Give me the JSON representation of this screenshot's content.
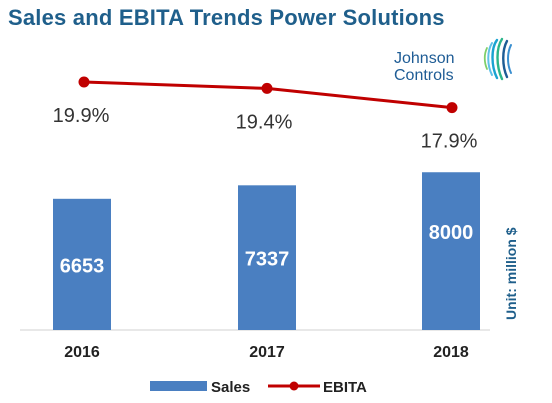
{
  "title": "Sales and EBITA Trends Power Solutions",
  "logo": {
    "line1": "Johnson",
    "line2": "Controls"
  },
  "unit_label": "Unit:  million $",
  "colors": {
    "bar": "#4a7fc1",
    "line": "#c00000",
    "title": "#1f5f8b"
  },
  "chart_data": {
    "type": "bar",
    "categories": [
      "2016",
      "2017",
      "2018"
    ],
    "series": [
      {
        "name": "Sales",
        "type": "bar",
        "values": [
          6653,
          7337,
          8000
        ],
        "labels": [
          "6653",
          "7337",
          "8000"
        ]
      },
      {
        "name": "EBITA",
        "type": "line",
        "values": [
          19.9,
          19.4,
          17.9
        ],
        "labels": [
          "19.9%",
          "19.4%",
          "17.9%"
        ]
      }
    ],
    "legend": [
      "Sales",
      "EBITA"
    ],
    "legend_position": "bottom"
  }
}
